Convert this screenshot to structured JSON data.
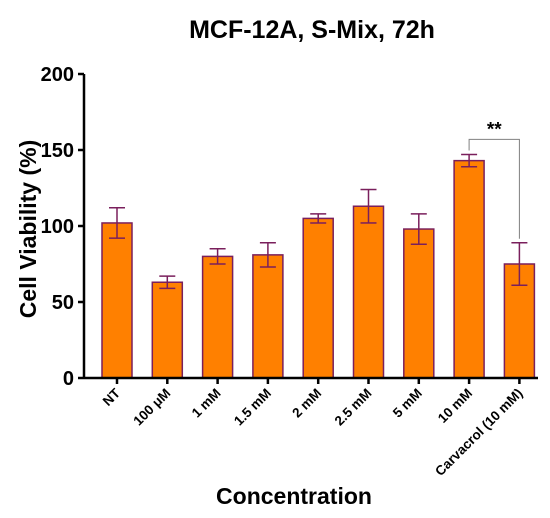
{
  "chart_data": {
    "type": "bar",
    "title": "MCF-12A, S-Mix, 72h",
    "xlabel": "Concentration",
    "ylabel": "Cell Viability (%)",
    "ylim": [
      0,
      200
    ],
    "yticks": [
      0,
      50,
      100,
      150,
      200
    ],
    "ytick_labels": [
      "0",
      "50",
      "100",
      "150",
      "200"
    ],
    "categories": [
      "NT",
      "100 μM",
      "1 mM",
      "1.5 mM",
      "2 mM",
      "2.5 mM",
      "5 mM",
      "10 mM",
      "Carvacrol (10 mM)"
    ],
    "values": [
      102,
      63,
      80,
      81,
      105,
      113,
      98,
      143,
      75
    ],
    "errors": [
      10,
      4,
      5,
      8,
      3,
      11,
      10,
      4,
      14
    ],
    "grid": false,
    "colors": {
      "bar_fill": "#ff8000",
      "bar_stroke": "#7a1f5c",
      "error_bar": "#7a1f5c",
      "axis": "#000000",
      "bracket": "#808080"
    },
    "annotations": [
      {
        "text": "**",
        "between": [
          "10 mM",
          "Carvacrol (10 mM)"
        ]
      }
    ]
  }
}
